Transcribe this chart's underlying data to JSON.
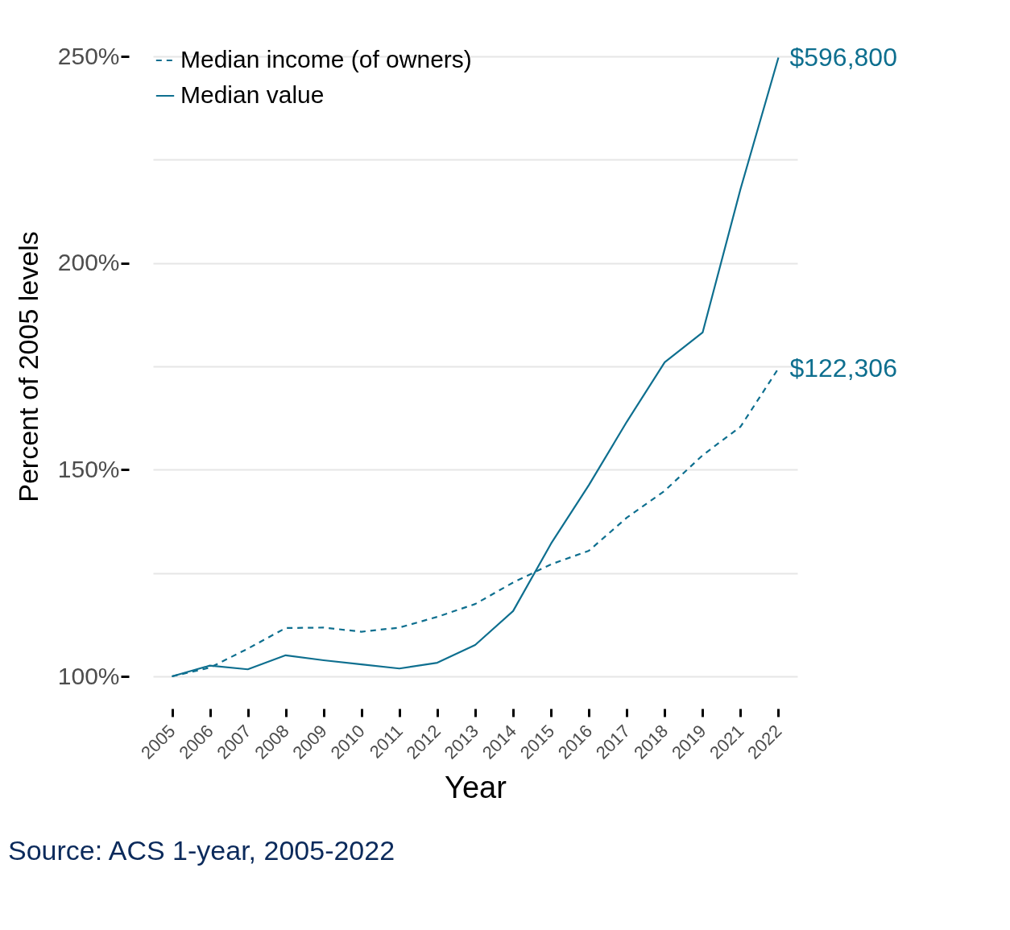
{
  "chart_data": {
    "type": "line",
    "xlabel": "Year",
    "ylabel": "Percent of 2005 levels",
    "categories": [
      "2005",
      "2006",
      "2007",
      "2008",
      "2009",
      "2010",
      "2011",
      "2012",
      "2013",
      "2014",
      "2015",
      "2016",
      "2017",
      "2018",
      "2019",
      "2021",
      "2022"
    ],
    "series": [
      {
        "name": "Median income (of owners)",
        "color": "#0e6f8f",
        "line_style": "dashed",
        "values": [
          100,
          102.1,
          106.7,
          111.7,
          111.8,
          110.8,
          111.8,
          114.4,
          117.5,
          122.7,
          127.1,
          130.4,
          138.4,
          144.9,
          153.5,
          160.4,
          174.5
        ]
      },
      {
        "name": "Median value",
        "color": "#0e6f8f",
        "line_style": "solid",
        "values": [
          100,
          102.6,
          101.7,
          105.1,
          103.9,
          102.9,
          101.9,
          103.3,
          107.6,
          115.8,
          132.1,
          146.3,
          161.6,
          176.0,
          183.2,
          217.9,
          249.7
        ]
      }
    ],
    "ylim": [
      100,
      250
    ],
    "yticks": [
      {
        "value": 100,
        "label": "100%"
      },
      {
        "value": 125,
        "label": null
      },
      {
        "value": 150,
        "label": "150%"
      },
      {
        "value": 175,
        "label": null
      },
      {
        "value": 200,
        "label": "200%"
      },
      {
        "value": 225,
        "label": null
      },
      {
        "value": 250,
        "label": "250%"
      }
    ],
    "grid": "y",
    "legend": "top left",
    "marker": "none",
    "annotations": [
      {
        "text": "$596,800",
        "x": "2022",
        "y": 249.7
      },
      {
        "text": "$122,306",
        "x": "2022",
        "y": 174.5
      },
      "Source: ACS 1-year, 2005-2022"
    ]
  }
}
